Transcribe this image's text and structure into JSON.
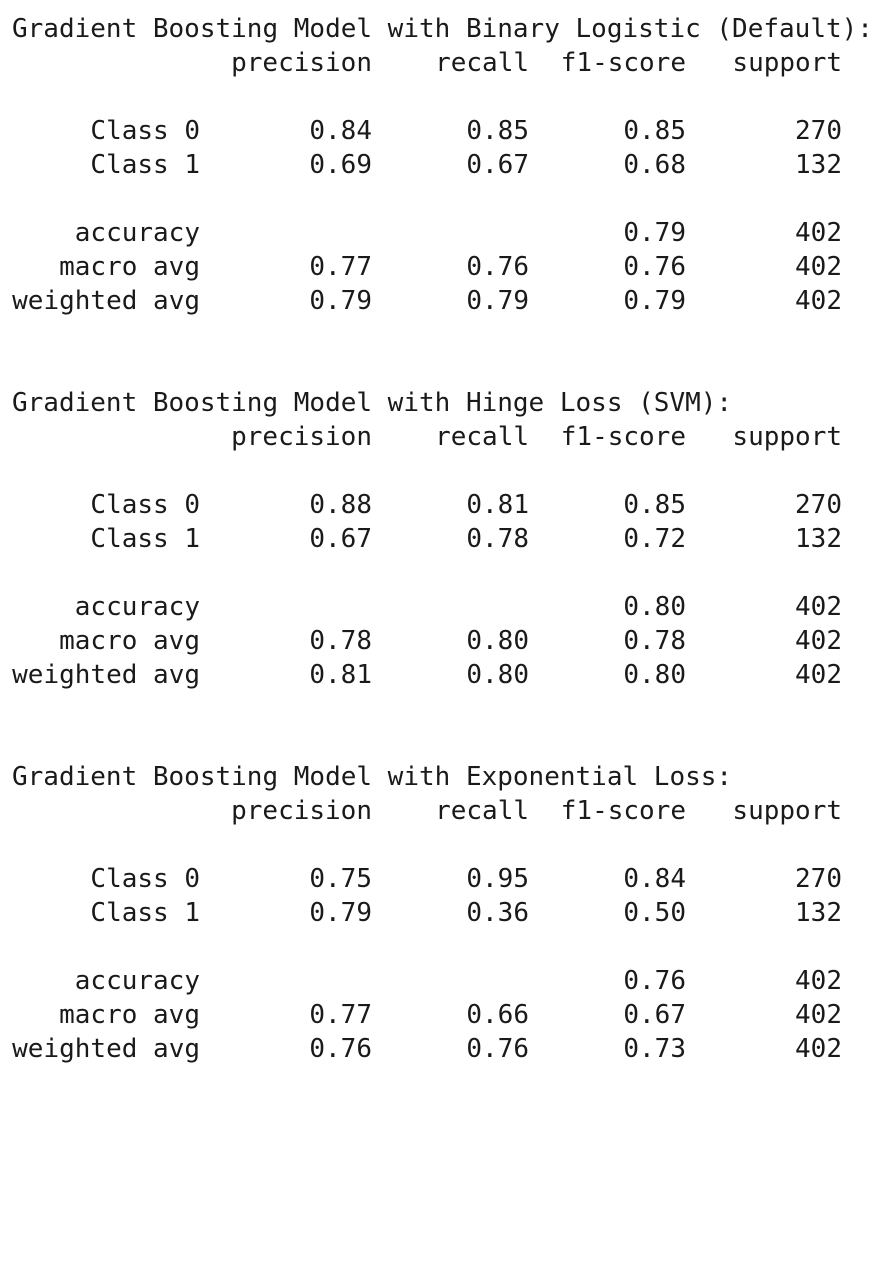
{
  "reports": [
    {
      "title": "Gradient Boosting Model with Binary Logistic (Default):",
      "headers": [
        "precision",
        "recall",
        "f1-score",
        "support"
      ],
      "class_rows": [
        {
          "label": "Class 0",
          "precision": "0.84",
          "recall": "0.85",
          "f1": "0.85",
          "support": "270"
        },
        {
          "label": "Class 1",
          "precision": "0.69",
          "recall": "0.67",
          "f1": "0.68",
          "support": "132"
        }
      ],
      "accuracy": {
        "label": "accuracy",
        "f1": "0.79",
        "support": "402"
      },
      "macro_avg": {
        "label": "macro avg",
        "precision": "0.77",
        "recall": "0.76",
        "f1": "0.76",
        "support": "402"
      },
      "weighted_avg": {
        "label": "weighted avg",
        "precision": "0.79",
        "recall": "0.79",
        "f1": "0.79",
        "support": "402"
      }
    },
    {
      "title": "Gradient Boosting Model with Hinge Loss (SVM):",
      "headers": [
        "precision",
        "recall",
        "f1-score",
        "support"
      ],
      "class_rows": [
        {
          "label": "Class 0",
          "precision": "0.88",
          "recall": "0.81",
          "f1": "0.85",
          "support": "270"
        },
        {
          "label": "Class 1",
          "precision": "0.67",
          "recall": "0.78",
          "f1": "0.72",
          "support": "132"
        }
      ],
      "accuracy": {
        "label": "accuracy",
        "f1": "0.80",
        "support": "402"
      },
      "macro_avg": {
        "label": "macro avg",
        "precision": "0.78",
        "recall": "0.80",
        "f1": "0.78",
        "support": "402"
      },
      "weighted_avg": {
        "label": "weighted avg",
        "precision": "0.81",
        "recall": "0.80",
        "f1": "0.80",
        "support": "402"
      }
    },
    {
      "title": "Gradient Boosting Model with Exponential Loss:",
      "headers": [
        "precision",
        "recall",
        "f1-score",
        "support"
      ],
      "class_rows": [
        {
          "label": "Class 0",
          "precision": "0.75",
          "recall": "0.95",
          "f1": "0.84",
          "support": "270"
        },
        {
          "label": "Class 1",
          "precision": "0.79",
          "recall": "0.36",
          "f1": "0.50",
          "support": "132"
        }
      ],
      "accuracy": {
        "label": "accuracy",
        "f1": "0.76",
        "support": "402"
      },
      "macro_avg": {
        "label": "macro avg",
        "precision": "0.77",
        "recall": "0.66",
        "f1": "0.67",
        "support": "402"
      },
      "weighted_avg": {
        "label": "weighted avg",
        "precision": "0.76",
        "recall": "0.76",
        "f1": "0.73",
        "support": "402"
      }
    }
  ]
}
